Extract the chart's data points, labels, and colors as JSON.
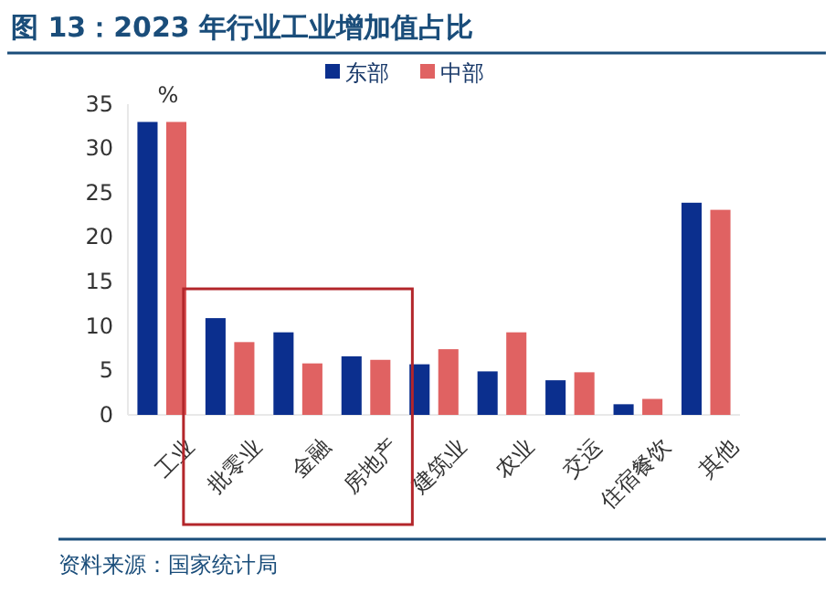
{
  "chart_data": {
    "type": "bar",
    "title": "图 13：2023 年行业工业增加值占比",
    "ylabel": "%",
    "categories": [
      "工业",
      "批零业",
      "金融",
      "房地产",
      "建筑业",
      "农业",
      "交运",
      "住宿餐饮",
      "其他"
    ],
    "series": [
      {
        "name": "东部",
        "color": "#0b2f8e",
        "values": [
          33.0,
          10.9,
          9.3,
          6.6,
          5.7,
          4.9,
          3.9,
          1.2,
          23.9
        ]
      },
      {
        "name": "中部",
        "color": "#e06262",
        "values": [
          33.0,
          8.2,
          5.8,
          6.2,
          7.4,
          9.3,
          4.8,
          1.8,
          23.1
        ]
      }
    ],
    "ylim": [
      0,
      35
    ],
    "yticks": [
      0,
      5,
      10,
      15,
      20,
      25,
      30,
      35
    ],
    "grid": false,
    "legend": "top",
    "annotations": [
      "资料来源：国家统计局"
    ]
  }
}
